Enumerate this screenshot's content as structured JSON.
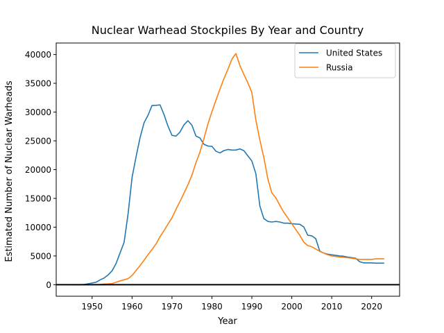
{
  "chart_data": {
    "type": "line",
    "title": "Nuclear Warhead Stockpiles By Year and Country",
    "xlabel": "Year",
    "ylabel": "Estimated Number of Nuclear Warheads",
    "xlim": [
      1941,
      2027
    ],
    "ylim": [
      -2000,
      42000
    ],
    "xticks": [
      1950,
      1960,
      1970,
      1980,
      1990,
      2000,
      2010,
      2020
    ],
    "yticks": [
      0,
      5000,
      10000,
      15000,
      20000,
      25000,
      30000,
      35000,
      40000
    ],
    "reference_line": {
      "y": 0,
      "color": "#000000"
    },
    "legend": {
      "position": "top-right"
    },
    "x": [
      1945,
      1946,
      1947,
      1948,
      1949,
      1950,
      1951,
      1952,
      1953,
      1954,
      1955,
      1956,
      1957,
      1958,
      1959,
      1960,
      1961,
      1962,
      1963,
      1964,
      1965,
      1966,
      1967,
      1968,
      1969,
      1970,
      1971,
      1972,
      1973,
      1974,
      1975,
      1976,
      1977,
      1978,
      1979,
      1980,
      1981,
      1982,
      1983,
      1984,
      1985,
      1986,
      1987,
      1988,
      1989,
      1990,
      1991,
      1992,
      1993,
      1994,
      1995,
      1996,
      1997,
      1998,
      1999,
      2000,
      2001,
      2002,
      2003,
      2004,
      2005,
      2006,
      2007,
      2008,
      2009,
      2010,
      2011,
      2012,
      2013,
      2014,
      2015,
      2016,
      2017,
      2018,
      2019,
      2020,
      2021,
      2022,
      2023
    ],
    "series": [
      {
        "name": "United States",
        "color": "#1f77b4",
        "values": [
          2,
          9,
          13,
          50,
          170,
          299,
          438,
          841,
          1169,
          1703,
          2422,
          3692,
          5543,
          7345,
          12298,
          18638,
          22229,
          25540,
          28133,
          29463,
          31139,
          31175,
          31255,
          29561,
          27552,
          25950,
          25825,
          26519,
          27787,
          28500,
          27700,
          25840,
          25500,
          24400,
          24100,
          24050,
          23200,
          22900,
          23300,
          23500,
          23400,
          23400,
          23600,
          23300,
          22400,
          21500,
          19300,
          13700,
          11500,
          11000,
          10900,
          11000,
          10900,
          10700,
          10700,
          10600,
          10550,
          10500,
          10050,
          8600,
          8500,
          8000,
          5850,
          5500,
          5300,
          5200,
          5100,
          5000,
          4950,
          4800,
          4700,
          4600,
          4000,
          3800,
          3800,
          3800,
          3750,
          3750,
          3750
        ]
      },
      {
        "name": "Russia",
        "color": "#ff7f0e",
        "values": [
          0,
          0,
          0,
          0,
          1,
          5,
          25,
          50,
          120,
          150,
          200,
          426,
          660,
          869,
          1060,
          1605,
          2471,
          3322,
          4238,
          5221,
          6129,
          7089,
          8339,
          9399,
          10538,
          11643,
          13092,
          14478,
          15915,
          17385,
          19055,
          21205,
          23044,
          25393,
          27935,
          30062,
          32049,
          33952,
          35804,
          37431,
          39197,
          40159,
          38107,
          36538,
          35078,
          33417,
          28595,
          25155,
          22101,
          18399,
          15960,
          15100,
          13800,
          12600,
          11600,
          10600,
          9600,
          8600,
          7400,
          6800,
          6600,
          6200,
          5800,
          5500,
          5200,
          5000,
          4900,
          4800,
          4750,
          4700,
          4600,
          4500,
          4400,
          4400,
          4400,
          4400,
          4500,
          4500,
          4500
        ]
      }
    ]
  }
}
